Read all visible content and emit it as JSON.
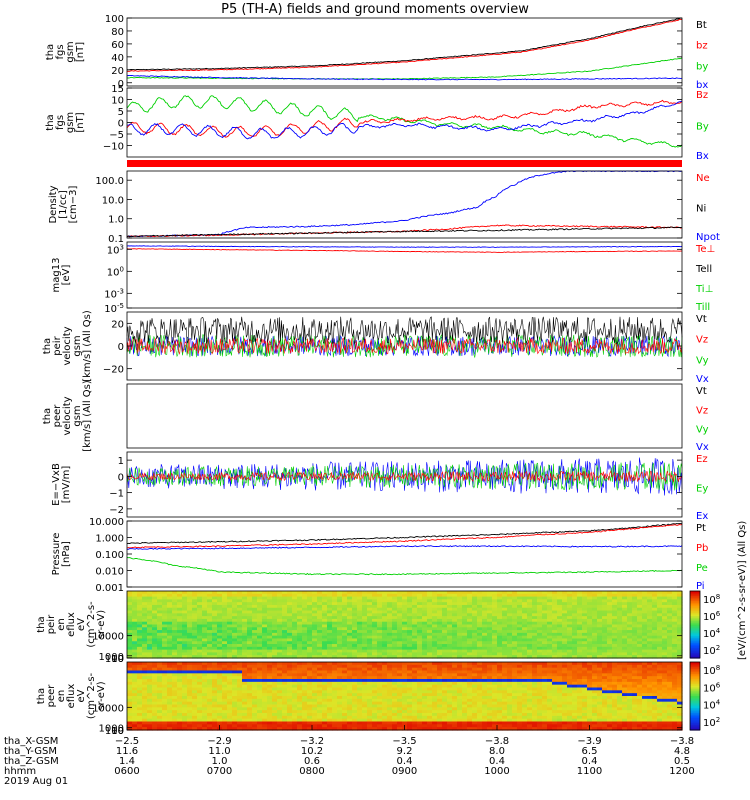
{
  "title": "P5 (TH-A) fields and ground moments overview",
  "colors": {
    "black": "#000000",
    "red": "#ff0000",
    "green": "#00d000",
    "blue": "#0000ff",
    "lime": "#20e020"
  },
  "chart_data": [
    {
      "type": "line",
      "panel": "fgs_gsm_mag",
      "ylabel": [
        "tha",
        "fgs",
        "gsm",
        "[nT]"
      ],
      "ylim": [
        -5,
        100
      ],
      "yticks": [
        {
          "v": 0,
          "l": "0"
        },
        {
          "v": 20,
          "l": "20"
        },
        {
          "v": 40,
          "l": "40"
        },
        {
          "v": 60,
          "l": "60"
        },
        {
          "v": 80,
          "l": "80"
        },
        {
          "v": 100,
          "l": "100"
        }
      ],
      "legend": [
        {
          "name": "Bt",
          "color": "black"
        },
        {
          "name": "bz",
          "color": "red"
        },
        {
          "name": "by",
          "color": "green"
        },
        {
          "name": "bx",
          "color": "blue"
        }
      ],
      "series": [
        {
          "name": "Bt",
          "color": "black",
          "x": [
            0,
            1,
            2,
            3,
            4,
            4.3,
            4.6,
            5,
            5.5,
            6
          ],
          "y": [
            20,
            22,
            26,
            34,
            46,
            50,
            58,
            68,
            85,
            100
          ]
        },
        {
          "name": "bz",
          "color": "red",
          "x": [
            0,
            1,
            2,
            3,
            4,
            4.3,
            4.6,
            5,
            5.5,
            6
          ],
          "y": [
            18,
            20,
            24,
            32,
            44,
            48,
            56,
            66,
            83,
            98
          ]
        },
        {
          "name": "by",
          "color": "green",
          "x": [
            0,
            1,
            2,
            3,
            4,
            5,
            6
          ],
          "y": [
            8,
            7,
            6,
            6,
            9,
            18,
            38
          ]
        },
        {
          "name": "bx",
          "color": "blue",
          "x": [
            0,
            1,
            2,
            3,
            4,
            5,
            6
          ],
          "y": [
            11,
            8,
            6,
            5,
            5,
            6,
            7
          ]
        }
      ]
    },
    {
      "type": "line",
      "panel": "fgs_gsm_comp",
      "ylabel": [
        "tha",
        "fgs",
        "gsm",
        "[nT]"
      ],
      "ylim": [
        -15,
        15
      ],
      "yticks": [
        {
          "v": -10,
          "l": "−10"
        },
        {
          "v": -5,
          "l": "−5"
        },
        {
          "v": 0,
          "l": "0"
        },
        {
          "v": 5,
          "l": "5"
        },
        {
          "v": 10,
          "l": "10"
        },
        {
          "v": 15,
          "l": "15"
        }
      ],
      "legend": [
        {
          "name": "Bz",
          "color": "red"
        },
        {
          "name": "By",
          "color": "green"
        },
        {
          "name": "Bx",
          "color": "blue"
        }
      ],
      "series": [
        {
          "name": "By",
          "color": "green",
          "x": [
            0,
            0.5,
            1,
            1.5,
            2,
            2.5,
            3,
            3.5,
            4,
            4.5,
            5,
            5.5,
            6
          ],
          "y": [
            6,
            9,
            9,
            7,
            5,
            3,
            1,
            -1,
            -2,
            -4,
            -5,
            -8,
            -10
          ]
        },
        {
          "name": "Bz",
          "color": "red",
          "x": [
            0,
            0.5,
            1,
            1.5,
            2,
            2.5,
            3,
            3.5,
            4,
            4.5,
            5,
            5.5,
            6
          ],
          "y": [
            -2,
            -3,
            -4,
            -4,
            -2,
            0,
            1,
            2,
            2,
            4,
            7,
            8,
            9
          ]
        },
        {
          "name": "Bx",
          "color": "blue",
          "x": [
            0,
            0.5,
            1,
            1.5,
            2,
            2.5,
            3,
            3.5,
            4,
            4.5,
            5,
            5.5,
            6
          ],
          "y": [
            -3,
            -3,
            -4,
            -5,
            -4,
            -2,
            -1,
            -2,
            -3,
            -1,
            1,
            4,
            9
          ]
        }
      ]
    },
    {
      "type": "line",
      "panel": "density",
      "scale": "log",
      "ylabel": [
        "Density",
        "[1/cc]",
        "[cm−3]"
      ],
      "ylim": [
        0.1,
        300
      ],
      "yticks": [
        {
          "v": 0.1,
          "l": "0.1"
        },
        {
          "v": 1,
          "l": "1.0"
        },
        {
          "v": 10,
          "l": "10.0"
        },
        {
          "v": 100,
          "l": "100.0"
        }
      ],
      "legend": [
        {
          "name": "Ne",
          "color": "red"
        },
        {
          "name": "Ni",
          "color": "black"
        },
        {
          "name": "Npot",
          "color": "blue"
        }
      ],
      "series": [
        {
          "name": "Npot",
          "color": "blue",
          "x": [
            0,
            1,
            1.3,
            2,
            2.5,
            3,
            3.5,
            3.8,
            4,
            4.2,
            4.5,
            4.8
          ],
          "y": [
            0.12,
            0.15,
            0.35,
            0.4,
            0.5,
            0.8,
            2,
            4,
            15,
            60,
            200,
            300
          ]
        },
        {
          "name": "Ne",
          "color": "red",
          "x": [
            0,
            1,
            2,
            3,
            3.5,
            4,
            5,
            6
          ],
          "y": [
            0.12,
            0.14,
            0.18,
            0.22,
            0.3,
            0.45,
            0.4,
            0.35
          ]
        },
        {
          "name": "Ni",
          "color": "black",
          "x": [
            0,
            1,
            2,
            3,
            4,
            5,
            6
          ],
          "y": [
            0.12,
            0.15,
            0.18,
            0.22,
            0.25,
            0.3,
            0.35
          ]
        }
      ]
    },
    {
      "type": "line",
      "panel": "temperature",
      "scale": "log",
      "ylabel": [
        "mag13",
        "[eV]"
      ],
      "ylim": [
        1e-05,
        10000
      ],
      "yticks": [
        {
          "v": 1000,
          "l": "10^3"
        },
        {
          "v": 1,
          "l": "10^0"
        },
        {
          "v": 0.001,
          "l": "10^-3"
        },
        {
          "v": 1e-05,
          "l": "10^-5"
        }
      ],
      "legend": [
        {
          "name": "Te⊥",
          "color": "red"
        },
        {
          "name": "Tell",
          "color": "black"
        },
        {
          "name": "Ti⊥",
          "color": "green"
        },
        {
          "name": "Till",
          "color": "green"
        }
      ],
      "series": [
        {
          "name": "Ti",
          "color": "blue",
          "x": [
            0,
            1,
            2,
            3,
            4,
            5,
            6
          ],
          "y": [
            3000,
            2500,
            2200,
            2000,
            2000,
            2200,
            2400
          ]
        },
        {
          "name": "Te",
          "color": "red",
          "x": [
            0,
            1,
            2,
            3,
            4,
            5,
            6
          ],
          "y": [
            1200,
            900,
            700,
            500,
            400,
            500,
            600
          ]
        }
      ]
    },
    {
      "type": "line",
      "panel": "peir_velocity",
      "ylabel": [
        "tha",
        "peir",
        "velocity",
        "gsm",
        "[km/s] (All Qs)"
      ],
      "ylim": [
        -30,
        30
      ],
      "yticks": [
        {
          "v": -20,
          "l": "−20"
        },
        {
          "v": 0,
          "l": "0"
        },
        {
          "v": 20,
          "l": "20"
        }
      ],
      "legend": [
        {
          "name": "Vt",
          "color": "black"
        },
        {
          "name": "Vz",
          "color": "red"
        },
        {
          "name": "Vy",
          "color": "green"
        },
        {
          "name": "Vx",
          "color": "blue"
        }
      ]
    },
    {
      "type": "line",
      "panel": "peer_velocity",
      "ylabel": [
        "tha",
        "peer",
        "velocity",
        "gsm",
        "[km/s] (All Qs)"
      ],
      "legend": [
        {
          "name": "Vt",
          "color": "black"
        },
        {
          "name": "Vz",
          "color": "red"
        },
        {
          "name": "Vy",
          "color": "green"
        },
        {
          "name": "Vx",
          "color": "blue"
        }
      ]
    },
    {
      "type": "line",
      "panel": "efield",
      "ylabel": [
        "E=−VxB",
        "[mV/m]"
      ],
      "ylim": [
        -2.5,
        1.5
      ],
      "yticks": [
        {
          "v": -2,
          "l": "−2"
        },
        {
          "v": -1,
          "l": "−1"
        },
        {
          "v": 0,
          "l": "0"
        },
        {
          "v": 1,
          "l": "1"
        }
      ],
      "legend": [
        {
          "name": "Ez",
          "color": "red"
        },
        {
          "name": "Ey",
          "color": "green"
        },
        {
          "name": "Ex",
          "color": "blue"
        }
      ]
    },
    {
      "type": "line",
      "panel": "pressure",
      "scale": "log",
      "ylabel": [
        "Pressure",
        "[nPa]"
      ],
      "ylim": [
        0.001,
        10
      ],
      "yticks": [
        {
          "v": 0.001,
          "l": "0.001"
        },
        {
          "v": 0.01,
          "l": "0.010"
        },
        {
          "v": 0.1,
          "l": "0.100"
        },
        {
          "v": 1,
          "l": "1.000"
        },
        {
          "v": 10,
          "l": "10.000"
        }
      ],
      "legend": [
        {
          "name": "Pt",
          "color": "black"
        },
        {
          "name": "Pb",
          "color": "red"
        },
        {
          "name": "Pe",
          "color": "green"
        },
        {
          "name": "Pi",
          "color": "blue"
        }
      ],
      "series": [
        {
          "name": "Pt",
          "color": "black",
          "x": [
            0,
            1,
            2,
            3,
            4,
            5,
            5.5,
            6
          ],
          "y": [
            0.45,
            0.55,
            0.7,
            1,
            1.5,
            2.5,
            4,
            7
          ]
        },
        {
          "name": "Pb",
          "color": "red",
          "x": [
            0,
            1,
            2,
            3,
            4,
            5,
            5.5,
            6
          ],
          "y": [
            0.25,
            0.3,
            0.4,
            0.6,
            1,
            2,
            3.5,
            6
          ]
        },
        {
          "name": "Pi",
          "color": "blue",
          "x": [
            0,
            1,
            2,
            3,
            4,
            5,
            6
          ],
          "y": [
            0.2,
            0.22,
            0.25,
            0.3,
            0.3,
            0.28,
            0.3
          ]
        },
        {
          "name": "Pe",
          "color": "green",
          "x": [
            0,
            0.5,
            1,
            2,
            3,
            4,
            5,
            6
          ],
          "y": [
            0.06,
            0.02,
            0.008,
            0.006,
            0.006,
            0.007,
            0.008,
            0.01
          ]
        }
      ]
    },
    {
      "type": "heatmap",
      "panel": "peir_eflux",
      "ylabel": [
        "tha",
        "peir",
        "en",
        "eflux",
        "eV",
        "(cm^2-s-",
        "sr-eV)"
      ],
      "ylim": [
        5,
        30000
      ],
      "yticks": [
        {
          "v": 10,
          "l": "10"
        },
        {
          "v": 100,
          "l": "100"
        },
        {
          "v": 1000,
          "l": "1000"
        },
        {
          "v": 10000,
          "l": "10000"
        }
      ],
      "colorbar": {
        "labels": [
          "10^8",
          "10^6",
          "10^4",
          "10^2"
        ],
        "unit": "[eV/(cm^2-s-sr-eV)] (All Qs)"
      }
    },
    {
      "type": "heatmap",
      "panel": "peer_eflux",
      "ylabel": [
        "tha",
        "peer",
        "en",
        "eflux",
        "eV",
        "(cm^2-s-",
        "sr-eV)"
      ],
      "ylim": [
        5,
        30000
      ],
      "yticks": [
        {
          "v": 10,
          "l": "10"
        },
        {
          "v": 100,
          "l": "100"
        },
        {
          "v": 1000,
          "l": "1000"
        },
        {
          "v": 10000,
          "l": "10000"
        }
      ],
      "colorbar": {
        "labels": [
          "10^8",
          "10^6",
          "10^4",
          "10^2"
        ]
      }
    }
  ],
  "xaxis": {
    "rows": [
      {
        "label": "tha_X-GSM",
        "values": [
          "−2.5",
          "−2.9",
          "−3.2",
          "−3.5",
          "−3.8",
          "−3.9",
          "−3.8"
        ]
      },
      {
        "label": "tha_Y-GSM",
        "values": [
          "11.6",
          "11.0",
          "10.2",
          "9.2",
          "8.0",
          "6.5",
          "4.8"
        ]
      },
      {
        "label": "tha_Z-GSM",
        "values": [
          "1.4",
          "1.0",
          "0.6",
          "0.4",
          "0.4",
          "0.4",
          "0.5"
        ]
      },
      {
        "label": "hhmm",
        "values": [
          "0600",
          "0700",
          "0800",
          "0900",
          "1000",
          "1100",
          "1200"
        ]
      }
    ],
    "date": "2019 Aug 01"
  }
}
